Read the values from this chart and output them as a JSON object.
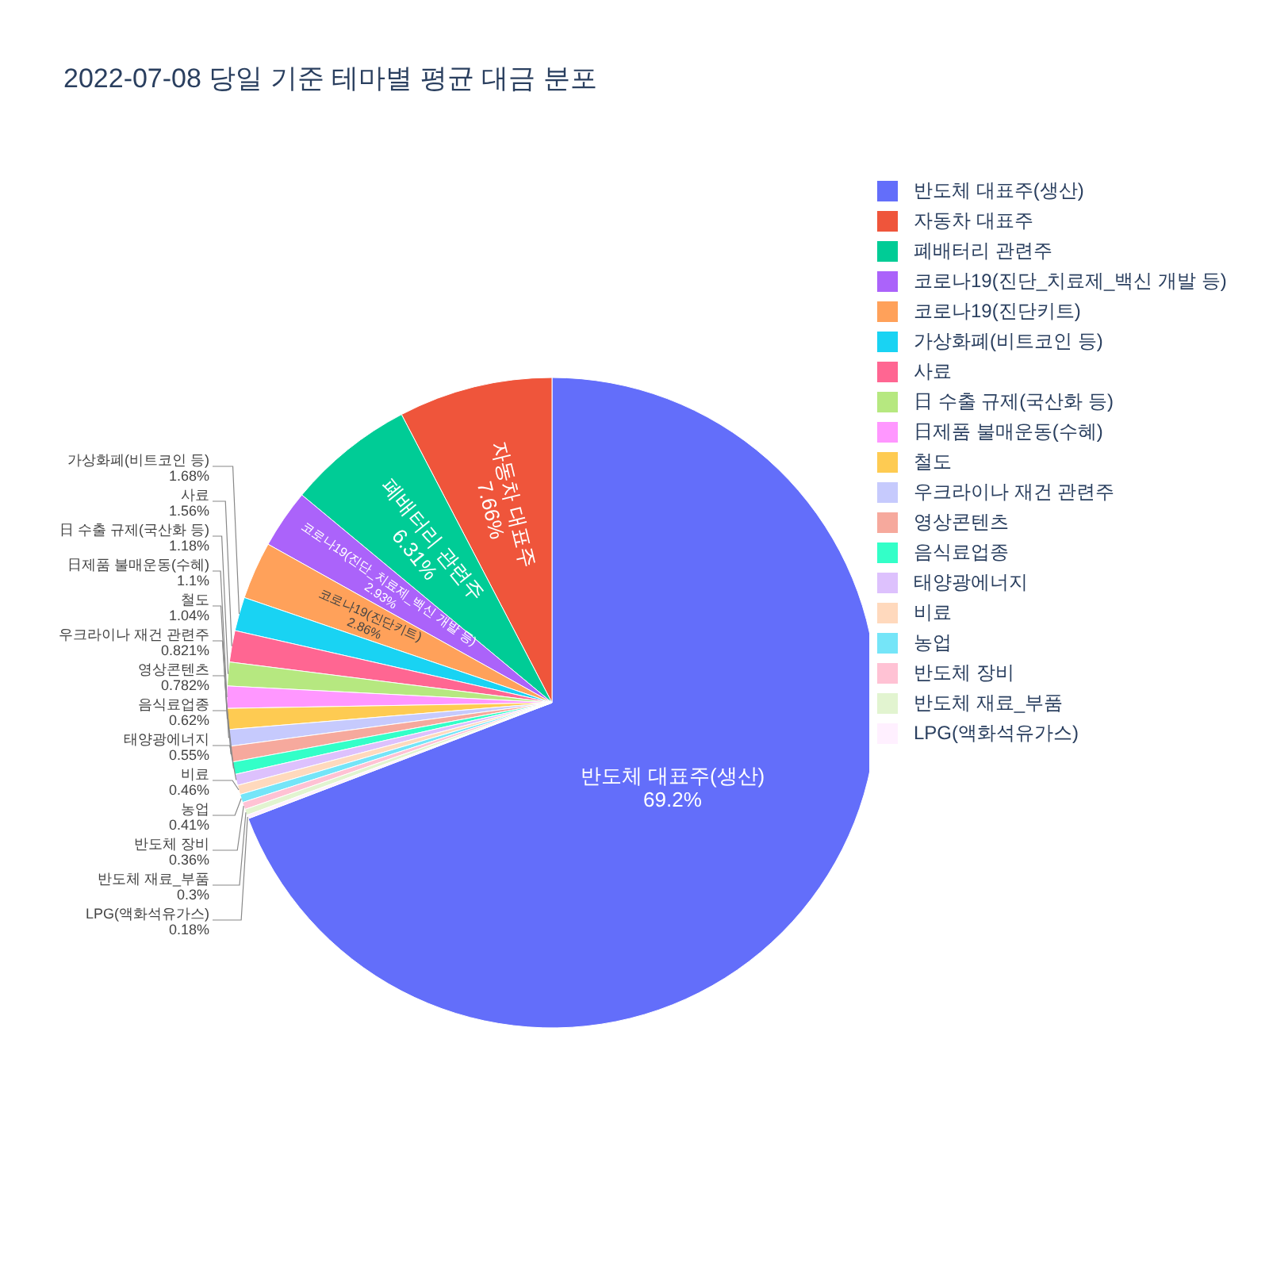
{
  "chart_data": {
    "type": "pie",
    "title": "2022-07-08 당일 기준 테마별 평균 대금 분포",
    "categories": [
      "반도체 대표주(생산)",
      "자동차 대표주",
      "폐배터리 관련주",
      "코로나19(진단_치료제_백신 개발 등)",
      "코로나19(진단키트)",
      "가상화폐(비트코인 등)",
      "사료",
      "日 수출 규제(국산화 등)",
      "日제품 불매운동(수혜)",
      "철도",
      "우크라이나 재건 관련주",
      "영상콘텐츠",
      "음식료업종",
      "태양광에너지",
      "비료",
      "농업",
      "반도체 장비",
      "반도체 재료_부품",
      "LPG(액화석유가스)"
    ],
    "values": [
      69.2,
      7.66,
      6.31,
      2.93,
      2.86,
      1.68,
      1.56,
      1.18,
      1.1,
      1.04,
      0.821,
      0.782,
      0.62,
      0.55,
      0.46,
      0.41,
      0.36,
      0.3,
      0.18
    ],
    "value_labels": [
      "69.2%",
      "7.66%",
      "6.31%",
      "2.93%",
      "2.86%",
      "1.68%",
      "1.56%",
      "1.18%",
      "1.1%",
      "1.04%",
      "0.821%",
      "0.782%",
      "0.62%",
      "0.55%",
      "0.46%",
      "0.41%",
      "0.36%",
      "0.3%",
      "0.18%"
    ],
    "colors": [
      "#636efa",
      "#ef553b",
      "#00cc96",
      "#ab63fa",
      "#ffa15a",
      "#19d3f3",
      "#ff6692",
      "#b6e880",
      "#ff97ff",
      "#fecb52",
      "#c6cafd",
      "#f6a99d",
      "#33ffc8",
      "#ddc1fd",
      "#ffd9bd",
      "#75e5f8",
      "#ffc2d4",
      "#e2f4d0",
      "#fff0ff"
    ],
    "legend": "top right"
  }
}
